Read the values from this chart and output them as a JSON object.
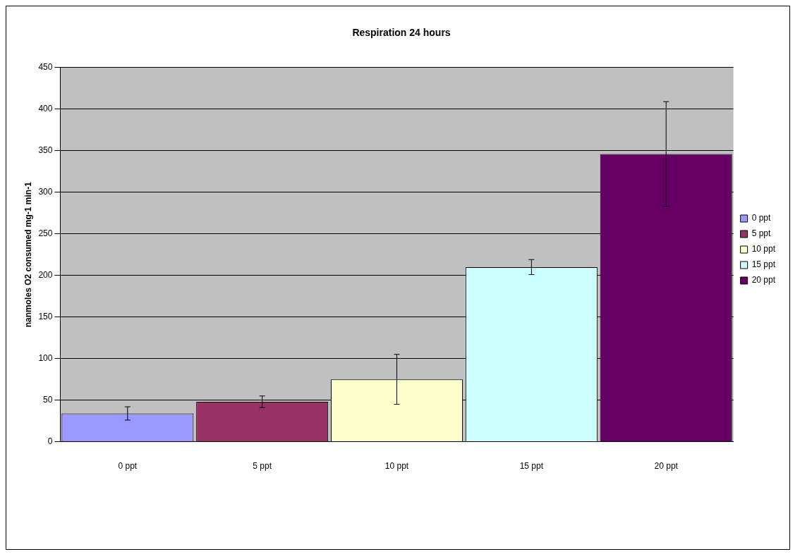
{
  "chart_data": {
    "type": "bar",
    "title": "Respiration 24 hours",
    "ylabel": "nanmoles O2 consumed mg-1 min-1",
    "categories": [
      "0 ppt",
      "5 ppt",
      "10 ppt",
      "15 ppt",
      "20 ppt"
    ],
    "series": [
      {
        "name": "0 ppt",
        "color": "#9999ff",
        "values": [
          34,
          null,
          null,
          null,
          null
        ],
        "errors": [
          8,
          null,
          null,
          null,
          null
        ]
      },
      {
        "name": "5 ppt",
        "color": "#993366",
        "values": [
          null,
          48,
          null,
          null,
          null
        ],
        "errors": [
          null,
          7,
          null,
          null,
          null
        ]
      },
      {
        "name": "10 ppt",
        "color": "#ffffcc",
        "values": [
          null,
          null,
          75,
          null,
          null
        ],
        "errors": [
          null,
          null,
          30,
          null,
          null
        ]
      },
      {
        "name": "15 ppt",
        "color": "#ccffff",
        "values": [
          null,
          null,
          null,
          210,
          null
        ],
        "errors": [
          null,
          null,
          null,
          9,
          null
        ]
      },
      {
        "name": "20 ppt",
        "color": "#660066",
        "values": [
          null,
          null,
          null,
          null,
          346
        ],
        "errors": [
          null,
          null,
          null,
          null,
          63
        ]
      }
    ],
    "ylim": [
      0,
      450
    ],
    "yticks": [
      0,
      50,
      100,
      150,
      200,
      250,
      300,
      350,
      400,
      450
    ],
    "grid": "y",
    "legend": "right"
  }
}
